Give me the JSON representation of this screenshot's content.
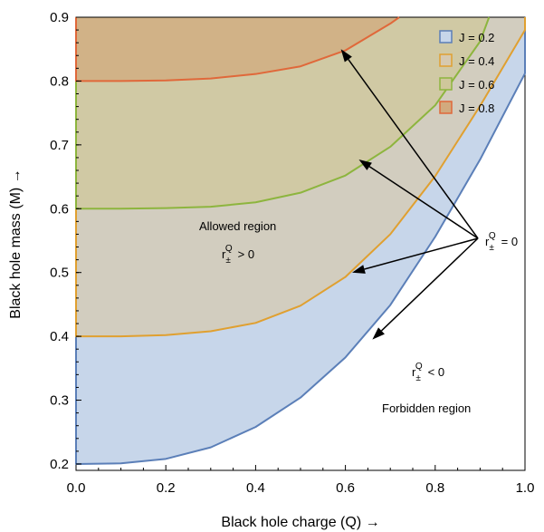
{
  "chart_data": {
    "type": "area",
    "xlabel": "Black hole charge (Q) →",
    "ylabel": "Black hole mass (M) →",
    "xlim": [
      0,
      1.0
    ],
    "ylim": [
      0.19,
      0.9
    ],
    "x_ticks": [
      0.0,
      0.2,
      0.4,
      0.6,
      0.8,
      1.0
    ],
    "x_tick_labels": [
      "0.0",
      "0.2",
      "0.4",
      "0.6",
      "0.8",
      "1.0"
    ],
    "y_ticks": [
      0.2,
      0.3,
      0.4,
      0.5,
      0.6,
      0.7,
      0.8,
      0.9
    ],
    "y_tick_labels": [
      "0.2",
      "0.3",
      "0.4",
      "0.5",
      "0.6",
      "0.7",
      "0.8",
      "0.9"
    ],
    "grid": false,
    "legend_position": "top-right",
    "series": [
      {
        "name": "J = 0.2",
        "color": "#5b7fb8",
        "fill": "#c7d6ea",
        "x": [
          0.0,
          0.1,
          0.2,
          0.3,
          0.4,
          0.5,
          0.6,
          0.7,
          0.8,
          0.9,
          1.0
        ],
        "y": [
          0.2,
          0.201,
          0.208,
          0.226,
          0.258,
          0.304,
          0.367,
          0.449,
          0.556,
          0.677,
          0.812
        ]
      },
      {
        "name": "J = 0.4",
        "color": "#e0a030",
        "fill": "#d6c9b0",
        "x": [
          0.0,
          0.1,
          0.2,
          0.3,
          0.4,
          0.5,
          0.6,
          0.7,
          0.8,
          0.9,
          1.0
        ],
        "y": [
          0.4,
          0.4,
          0.402,
          0.408,
          0.421,
          0.448,
          0.493,
          0.56,
          0.651,
          0.761,
          0.88
        ]
      },
      {
        "name": "J = 0.6",
        "color": "#8db53e",
        "fill": "#cfc79b",
        "x": [
          0.0,
          0.1,
          0.2,
          0.3,
          0.4,
          0.5,
          0.6,
          0.7,
          0.8,
          0.9,
          0.92
        ],
        "y": [
          0.6,
          0.6,
          0.601,
          0.603,
          0.61,
          0.625,
          0.652,
          0.697,
          0.762,
          0.862,
          0.9
        ]
      },
      {
        "name": "J = 0.8",
        "color": "#e0683a",
        "fill": "#d2aa7e",
        "x": [
          0.0,
          0.1,
          0.2,
          0.3,
          0.4,
          0.5,
          0.6,
          0.7,
          0.72
        ],
        "y": [
          0.8,
          0.8,
          0.801,
          0.804,
          0.811,
          0.823,
          0.848,
          0.89,
          0.9
        ]
      }
    ],
    "annotations": {
      "allowed": "Allowed region",
      "allowed_condition": "> 0",
      "forbidden": "Forbidden region",
      "forbidden_condition": "< 0",
      "zero_condition": "= 0",
      "r_symbol": "r",
      "sub": "±",
      "sup": "Q",
      "arrow_targets": [
        {
          "x": 0.59,
          "y": 0.85
        },
        {
          "x": 0.63,
          "y": 0.677
        },
        {
          "x": 0.615,
          "y": 0.5
        },
        {
          "x": 0.66,
          "y": 0.395
        }
      ],
      "arrow_source_label_point": {
        "x": 0.9,
        "y": 0.514
      }
    }
  }
}
